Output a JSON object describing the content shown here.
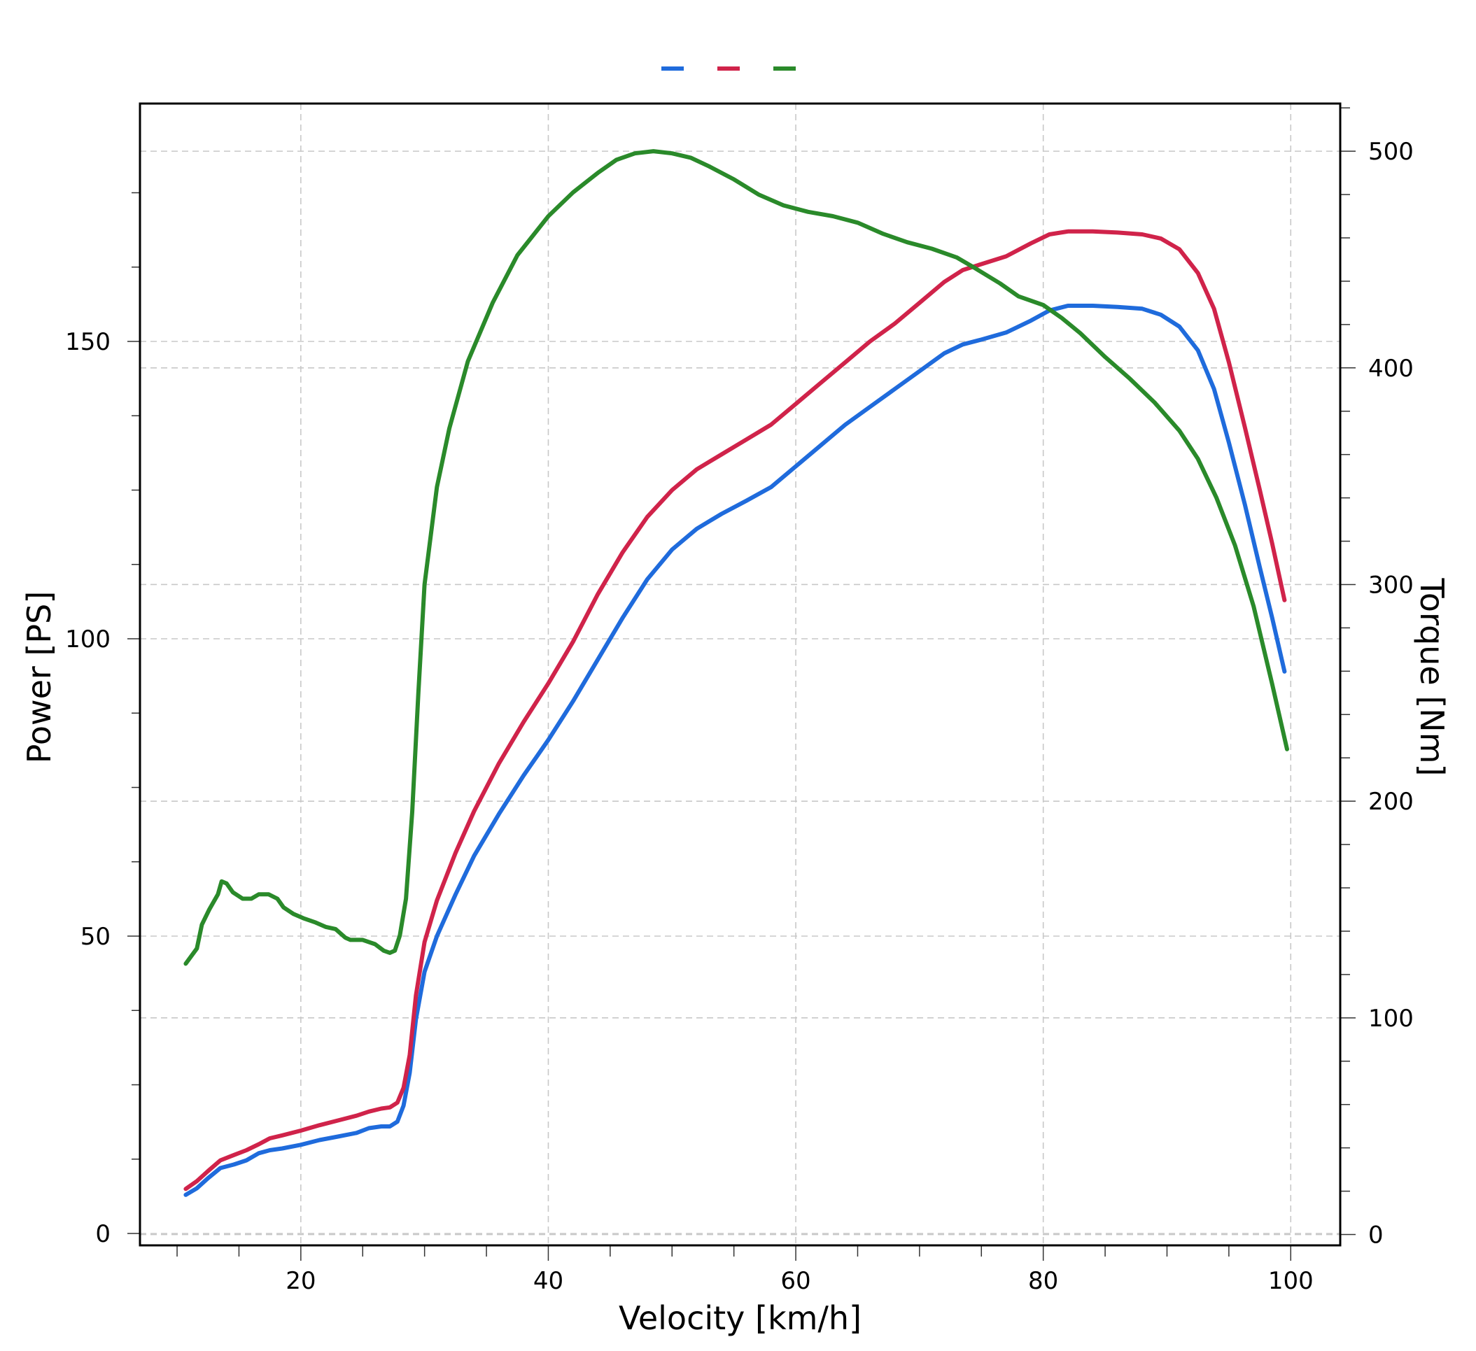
{
  "chart_data": {
    "type": "line",
    "title": "",
    "xlabel": "Velocity [km/h]",
    "ylabel": "Power [PS]",
    "y2label": "Torque [Nm]",
    "xlim": [
      7,
      104
    ],
    "ylim": [
      -2,
      190
    ],
    "y2lim": [
      -5,
      522
    ],
    "x_ticks": [
      20,
      40,
      60,
      80,
      100
    ],
    "y_ticks": [
      0,
      50,
      100,
      150
    ],
    "y2_ticks": [
      0,
      100,
      200,
      300,
      400,
      500
    ],
    "grid": true,
    "legend": "top-center",
    "series": [
      {
        "color": "#1f6bdc",
        "axis": "left",
        "points": [
          [
            10.7,
            6.5
          ],
          [
            11.6,
            7.6
          ],
          [
            12.5,
            9.3
          ],
          [
            13.5,
            11.0
          ],
          [
            14.6,
            11.6
          ],
          [
            15.6,
            12.3
          ],
          [
            16.6,
            13.5
          ],
          [
            17.5,
            14.0
          ],
          [
            18.5,
            14.3
          ],
          [
            20,
            14.9
          ],
          [
            21.5,
            15.7
          ],
          [
            23,
            16.3
          ],
          [
            24.5,
            16.9
          ],
          [
            25.5,
            17.7
          ],
          [
            26.5,
            18.0
          ],
          [
            27.2,
            18.0
          ],
          [
            27.8,
            18.8
          ],
          [
            28.3,
            21.5
          ],
          [
            28.8,
            27.0
          ],
          [
            29.3,
            36.0
          ],
          [
            30,
            44.0
          ],
          [
            31,
            50.0
          ],
          [
            32.5,
            57.0
          ],
          [
            34,
            63.5
          ],
          [
            36,
            70.5
          ],
          [
            38,
            77.0
          ],
          [
            40,
            83.0
          ],
          [
            42,
            89.5
          ],
          [
            44,
            96.5
          ],
          [
            46,
            103.5
          ],
          [
            48,
            110.0
          ],
          [
            50,
            115.0
          ],
          [
            52,
            118.5
          ],
          [
            54,
            121.0
          ],
          [
            56,
            123.2
          ],
          [
            58,
            125.5
          ],
          [
            60,
            129.0
          ],
          [
            62,
            132.5
          ],
          [
            64,
            136.0
          ],
          [
            66,
            139.0
          ],
          [
            68,
            142.0
          ],
          [
            70,
            145.0
          ],
          [
            72,
            148.0
          ],
          [
            73.5,
            149.5
          ],
          [
            75,
            150.3
          ],
          [
            77,
            151.5
          ],
          [
            79,
            153.5
          ],
          [
            80.5,
            155.2
          ],
          [
            82,
            156.0
          ],
          [
            84,
            156.0
          ],
          [
            86,
            155.8
          ],
          [
            88,
            155.5
          ],
          [
            89.5,
            154.5
          ],
          [
            91,
            152.5
          ],
          [
            92.5,
            148.5
          ],
          [
            93.8,
            142.0
          ],
          [
            95,
            133.0
          ],
          [
            96.3,
            122.5
          ],
          [
            97.5,
            112.0
          ],
          [
            98.5,
            103.5
          ],
          [
            99.5,
            94.5
          ]
        ]
      },
      {
        "color": "#d0234a",
        "axis": "left",
        "points": [
          [
            10.7,
            7.5
          ],
          [
            11.6,
            8.8
          ],
          [
            12.5,
            10.5
          ],
          [
            13.5,
            12.3
          ],
          [
            14.6,
            13.2
          ],
          [
            15.6,
            14.0
          ],
          [
            16.6,
            15.0
          ],
          [
            17.5,
            16.0
          ],
          [
            18.5,
            16.5
          ],
          [
            20,
            17.3
          ],
          [
            21.5,
            18.2
          ],
          [
            23,
            19.0
          ],
          [
            24.5,
            19.8
          ],
          [
            25.5,
            20.5
          ],
          [
            26.5,
            21.0
          ],
          [
            27.2,
            21.2
          ],
          [
            27.8,
            22.0
          ],
          [
            28.3,
            24.5
          ],
          [
            28.8,
            30.0
          ],
          [
            29.3,
            40.0
          ],
          [
            30,
            49.0
          ],
          [
            31,
            56.0
          ],
          [
            32.5,
            64.0
          ],
          [
            34,
            71.0
          ],
          [
            36,
            79.0
          ],
          [
            38,
            86.0
          ],
          [
            40,
            92.5
          ],
          [
            42,
            99.5
          ],
          [
            44,
            107.5
          ],
          [
            46,
            114.5
          ],
          [
            48,
            120.5
          ],
          [
            50,
            125.0
          ],
          [
            52,
            128.5
          ],
          [
            54,
            131.0
          ],
          [
            56,
            133.5
          ],
          [
            58,
            136.0
          ],
          [
            60,
            139.5
          ],
          [
            62,
            143.0
          ],
          [
            64,
            146.5
          ],
          [
            66,
            150.0
          ],
          [
            68,
            153.0
          ],
          [
            70,
            156.5
          ],
          [
            72,
            160.0
          ],
          [
            73.5,
            162.0
          ],
          [
            75,
            163.0
          ],
          [
            77,
            164.3
          ],
          [
            79,
            166.5
          ],
          [
            80.5,
            168.0
          ],
          [
            82,
            168.5
          ],
          [
            84,
            168.5
          ],
          [
            86,
            168.3
          ],
          [
            88,
            168.0
          ],
          [
            89.5,
            167.3
          ],
          [
            91,
            165.5
          ],
          [
            92.5,
            161.5
          ],
          [
            93.8,
            155.5
          ],
          [
            95,
            146.5
          ],
          [
            96.3,
            135.5
          ],
          [
            97.5,
            125.0
          ],
          [
            98.5,
            116.0
          ],
          [
            99.5,
            106.5
          ]
        ]
      },
      {
        "color": "#2a8a2a",
        "axis": "right",
        "points": [
          [
            10.7,
            125
          ],
          [
            11.6,
            132
          ],
          [
            12,
            143
          ],
          [
            12.6,
            150
          ],
          [
            13.3,
            157
          ],
          [
            13.6,
            163
          ],
          [
            14,
            162
          ],
          [
            14.5,
            158
          ],
          [
            15.3,
            155
          ],
          [
            16,
            155
          ],
          [
            16.6,
            157
          ],
          [
            17.4,
            157
          ],
          [
            18.1,
            155
          ],
          [
            18.6,
            151
          ],
          [
            19.4,
            148
          ],
          [
            20.2,
            146
          ],
          [
            21.2,
            144
          ],
          [
            22,
            142
          ],
          [
            22.8,
            141
          ],
          [
            23.6,
            137
          ],
          [
            24,
            136
          ],
          [
            25,
            136
          ],
          [
            26,
            134
          ],
          [
            26.7,
            131
          ],
          [
            27.2,
            130
          ],
          [
            27.6,
            131
          ],
          [
            28,
            138
          ],
          [
            28.5,
            155
          ],
          [
            29,
            195
          ],
          [
            29.5,
            250
          ],
          [
            30,
            300
          ],
          [
            31,
            345
          ],
          [
            32,
            372
          ],
          [
            33.5,
            403
          ],
          [
            35.5,
            430
          ],
          [
            37.5,
            452
          ],
          [
            40,
            470
          ],
          [
            42,
            481
          ],
          [
            44,
            490
          ],
          [
            45.5,
            496
          ],
          [
            47,
            499
          ],
          [
            48.5,
            500
          ],
          [
            50,
            499
          ],
          [
            51.5,
            497
          ],
          [
            53,
            493
          ],
          [
            55,
            487
          ],
          [
            57,
            480
          ],
          [
            59,
            475
          ],
          [
            61,
            472
          ],
          [
            63,
            470
          ],
          [
            65,
            467
          ],
          [
            67,
            462
          ],
          [
            69,
            458
          ],
          [
            71,
            455
          ],
          [
            73,
            451
          ],
          [
            74.5,
            446
          ],
          [
            76.5,
            439
          ],
          [
            78,
            433
          ],
          [
            80,
            429
          ],
          [
            81.5,
            423
          ],
          [
            83,
            416
          ],
          [
            85,
            405
          ],
          [
            87,
            395
          ],
          [
            89,
            384
          ],
          [
            91,
            371
          ],
          [
            92.5,
            358
          ],
          [
            94,
            340
          ],
          [
            95.5,
            318
          ],
          [
            97,
            290
          ],
          [
            98.5,
            254
          ],
          [
            99.7,
            224
          ]
        ]
      }
    ]
  }
}
